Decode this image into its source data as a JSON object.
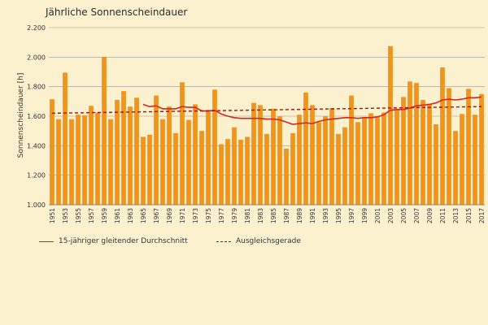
{
  "chart_data": {
    "type": "bar",
    "title": "Jährliche Sonnenscheindauer",
    "ylabel": "Sonnenscheindauer [h]",
    "xlabel": "",
    "ylim": [
      1000,
      2200
    ],
    "yticks": [
      "1.000",
      "1.200",
      "1.400",
      "1.600",
      "1.800",
      "2.000",
      "2.200"
    ],
    "grid": true,
    "colors": {
      "bars": "#f2941c",
      "moving_average": "#d5281d",
      "trend": "#a01010",
      "background": "#fbf1cf"
    },
    "x": [
      1951,
      1952,
      1953,
      1954,
      1955,
      1956,
      1957,
      1958,
      1959,
      1960,
      1961,
      1962,
      1963,
      1964,
      1965,
      1966,
      1967,
      1968,
      1969,
      1970,
      1971,
      1972,
      1973,
      1974,
      1975,
      1976,
      1977,
      1978,
      1979,
      1980,
      1981,
      1982,
      1983,
      1984,
      1985,
      1986,
      1987,
      1988,
      1989,
      1990,
      1991,
      1992,
      1993,
      1994,
      1995,
      1996,
      1997,
      1998,
      1999,
      2000,
      2001,
      2002,
      2003,
      2004,
      2005,
      2006,
      2007,
      2008,
      2009,
      2010,
      2011,
      2012,
      2013,
      2014,
      2015,
      2016,
      2017
    ],
    "xtick_labels": [
      "1951",
      "1953",
      "1955",
      "1957",
      "1959",
      "1961",
      "1963",
      "1965",
      "1967",
      "1969",
      "1971",
      "1973",
      "1975",
      "1977",
      "1979",
      "1981",
      "1983",
      "1985",
      "1987",
      "1989",
      "1991",
      "1993",
      "1995",
      "1997",
      "1999",
      "2001",
      "2003",
      "2005",
      "2007",
      "2009",
      "2011",
      "2013",
      "2015",
      "2017"
    ],
    "series": [
      {
        "name": "",
        "values": [
          1715,
          1580,
          1895,
          1580,
          1610,
          1605,
          1670,
          1625,
          2000,
          1580,
          1710,
          1770,
          1665,
          1725,
          1460,
          1475,
          1740,
          1580,
          1665,
          1485,
          1830,
          1575,
          1680,
          1500,
          1640,
          1780,
          1410,
          1445,
          1525,
          1440,
          1460,
          1690,
          1675,
          1480,
          1650,
          1600,
          1380,
          1485,
          1610,
          1760,
          1675,
          1560,
          1600,
          1655,
          1480,
          1525,
          1740,
          1560,
          1595,
          1620,
          1600,
          1625,
          2075,
          1650,
          1730,
          1835,
          1825,
          1710,
          1685,
          1545,
          1930,
          1790,
          1500,
          1615,
          1785,
          1610,
          1750
        ]
      },
      {
        "name": "15-jähriger gleitender Durchschnitt",
        "x": [
          1965,
          1966,
          1967,
          1968,
          1969,
          1970,
          1971,
          1972,
          1973,
          1974,
          1975,
          1976,
          1977,
          1978,
          1979,
          1980,
          1981,
          1982,
          1983,
          1984,
          1985,
          1986,
          1987,
          1988,
          1989,
          1990,
          1991,
          1992,
          1993,
          1994,
          1995,
          1996,
          1997,
          1998,
          1999,
          2000,
          2001,
          2002,
          2003,
          2004,
          2005,
          2006,
          2007,
          2008,
          2009,
          2010,
          2011,
          2012,
          2013,
          2014,
          2015,
          2016,
          2017
        ],
        "values": [
          1680,
          1665,
          1670,
          1650,
          1650,
          1650,
          1665,
          1660,
          1660,
          1635,
          1635,
          1640,
          1615,
          1600,
          1590,
          1585,
          1585,
          1585,
          1585,
          1580,
          1580,
          1575,
          1560,
          1545,
          1550,
          1555,
          1550,
          1565,
          1575,
          1580,
          1585,
          1590,
          1590,
          1585,
          1590,
          1590,
          1595,
          1610,
          1640,
          1645,
          1645,
          1655,
          1670,
          1675,
          1680,
          1690,
          1710,
          1715,
          1710,
          1715,
          1725,
          1725,
          1730
        ]
      },
      {
        "name": "Ausgleichsgerade",
        "x": [
          1951,
          2017
        ],
        "values": [
          1620,
          1665
        ]
      }
    ]
  }
}
